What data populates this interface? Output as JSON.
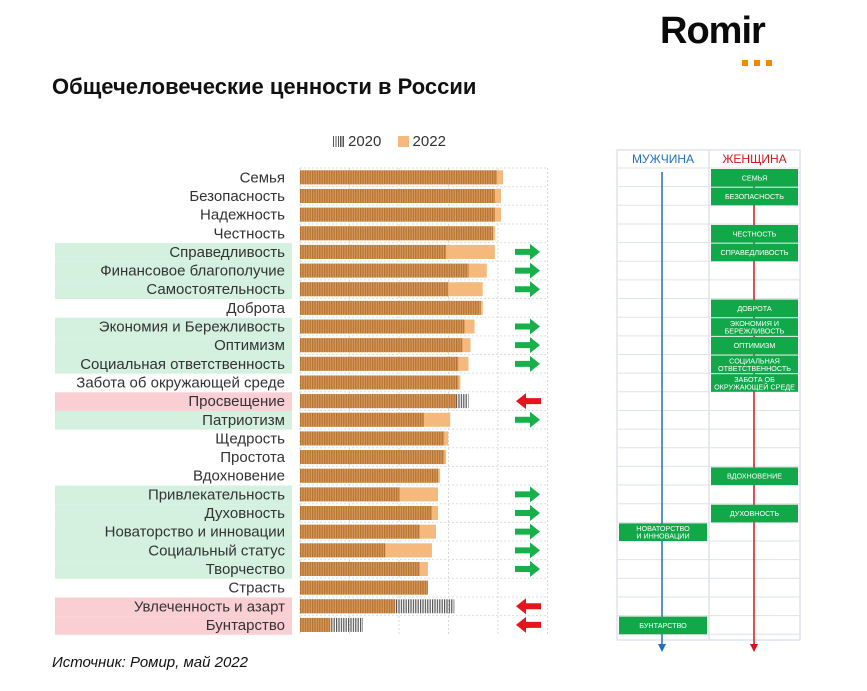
{
  "logo": {
    "text": "Romir"
  },
  "title": "Общечеловеческие ценности в России",
  "source": "Источник: Ромир, май 2022",
  "colors": {
    "bar2022": "#f5b97d",
    "bar2020": "#c7833f",
    "hatch2020": "#555555",
    "highlight_green": "#d4f0df",
    "highlight_red": "#f9cfd3",
    "arrow_up": "#18b04a",
    "arrow_down": "#e8141b",
    "box_green": "#12a84a",
    "male_color": "#1f6fc5",
    "female_color": "#d9141b"
  },
  "chart_data": {
    "type": "bar",
    "orientation": "horizontal",
    "legend": [
      "2020",
      "2022"
    ],
    "legend_position": "top",
    "categories": [
      "Семья",
      "Безопасность",
      "Надежность",
      "Честность",
      "Справедливость",
      "Финансовое благополучие",
      "Самостоятельность",
      "Доброта",
      "Экономия и Бережливость",
      "Оптимизм",
      "Социальная ответственность",
      "Забота об окружающей среде",
      "Просвещение",
      "Патриотизм",
      "Щедрость",
      "Простота",
      "Вдохновение",
      "Привлекательность",
      "Духовность",
      "Новаторство и инновации",
      "Социальный статус",
      "Творчество",
      "Страсть",
      "Увлеченность и азарт",
      "Бунтарство"
    ],
    "series": [
      {
        "name": "2020",
        "values": [
          97,
          96,
          96,
          95,
          72,
          83,
          73,
          89,
          81,
          80,
          78,
          78,
          83,
          61,
          71,
          71,
          68,
          49,
          65,
          59,
          42,
          59,
          63,
          76,
          31
        ]
      },
      {
        "name": "2022",
        "values": [
          100,
          99,
          99,
          96,
          96,
          92,
          90,
          90,
          86,
          84,
          83,
          79,
          77,
          74,
          73,
          72,
          69,
          68,
          68,
          67,
          65,
          63,
          63,
          47,
          15
        ]
      }
    ],
    "change": [
      "",
      "",
      "",
      "",
      "up",
      "up",
      "up",
      "",
      "up",
      "up",
      "up",
      "",
      "down",
      "up",
      "",
      "",
      "",
      "up",
      "up",
      "up",
      "up",
      "up",
      "",
      "down",
      "down"
    ],
    "row_highlight": [
      "",
      "",
      "",
      "",
      "green",
      "green",
      "green",
      "",
      "green",
      "green",
      "green",
      "",
      "red",
      "green",
      "",
      "",
      "",
      "green",
      "green",
      "green",
      "green",
      "green",
      "",
      "red",
      "red"
    ],
    "grid": true
  },
  "gender_panel": {
    "headers": {
      "male": "МУЖЧИНА",
      "female": "ЖЕНЩИНА"
    },
    "female_boxes": [
      {
        "row": 0,
        "text": "СЕМЬЯ"
      },
      {
        "row": 1,
        "text": "БЕЗОПАСНОСТЬ"
      },
      {
        "row": 3,
        "text": "ЧЕСТНОСТЬ"
      },
      {
        "row": 4,
        "text": "СПРАВЕДЛИВОСТЬ"
      },
      {
        "row": 7,
        "text": "ДОБРОТА"
      },
      {
        "row": 8,
        "text": "ЭКОНОМИЯ И БЕРЕЖЛИВОСТЬ"
      },
      {
        "row": 9,
        "text": "ОПТИМИЗМ"
      },
      {
        "row": 10,
        "text": "СОЦИАЛЬНАЯ ОТВЕТСТВЕННОСТЬ"
      },
      {
        "row": 11,
        "text": "ЗАБОТА ОБ ОКРУЖАЮЩЕЙ СРЕДЕ"
      },
      {
        "row": 16,
        "text": "ВДОХНОВЕНИЕ"
      },
      {
        "row": 18,
        "text": "ДУХОВНОСТЬ"
      }
    ],
    "male_boxes": [
      {
        "row": 19,
        "text": "НОВАТОРСТВО И ИННОВАЦИИ"
      },
      {
        "row": 24,
        "text": "БУНТАРСТВО"
      }
    ]
  }
}
